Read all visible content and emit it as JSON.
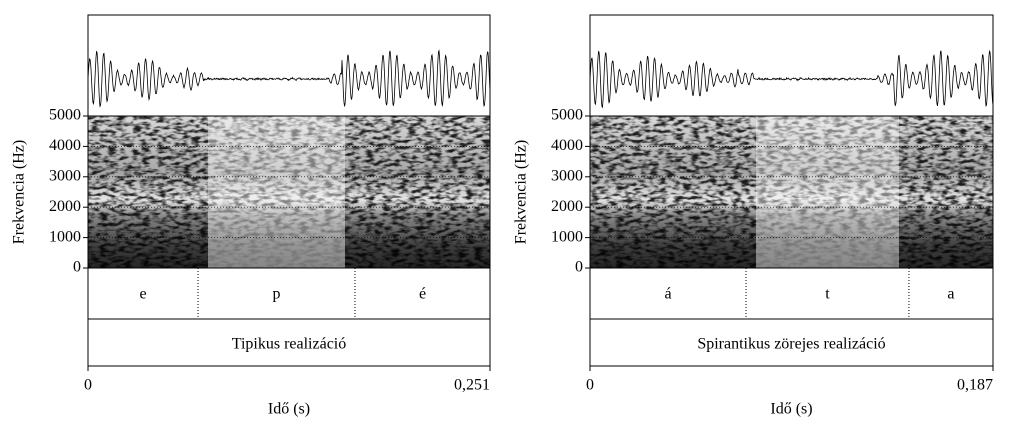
{
  "chart_data": [
    {
      "type": "spectrogram",
      "ylabel": "Frekvencia (Hz)",
      "xlabel": "Idő (s)",
      "ylim": [
        0,
        5000
      ],
      "yticks": [
        0,
        1000,
        2000,
        3000,
        4000,
        5000
      ],
      "xlim": [
        0,
        0.251
      ],
      "xticks": [
        0,
        {
          "value": 0.251,
          "label": "0,251"
        }
      ],
      "boundaries": [
        0.0687,
        0.1667
      ],
      "segments": [
        "e",
        "p",
        "é"
      ],
      "annotation": "Tipikus realizáció"
    },
    {
      "type": "spectrogram",
      "ylabel": "Frekvencia (Hz)",
      "xlabel": "Idő (s)",
      "ylim": [
        0,
        5000
      ],
      "yticks": [
        0,
        1000,
        2000,
        3000,
        4000,
        5000
      ],
      "xlim": [
        0,
        0.187
      ],
      "xticks": [
        0,
        {
          "value": 0.187,
          "label": "0,187"
        }
      ],
      "boundaries": [
        0.0724,
        0.148
      ],
      "segments": [
        "á",
        "t",
        "a"
      ],
      "annotation": "Spirantikus zörejes realizáció"
    }
  ]
}
